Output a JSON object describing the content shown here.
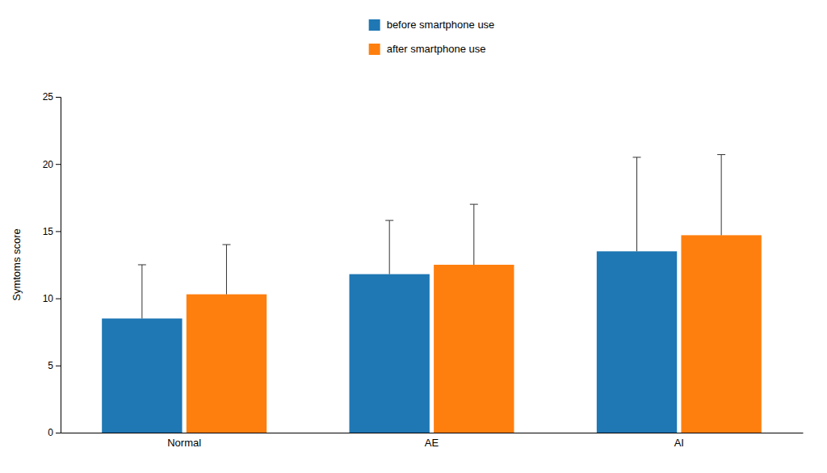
{
  "chart_data": {
    "type": "bar",
    "categories": [
      "Normal",
      "AE",
      "AI"
    ],
    "series": [
      {
        "name": "before smartphone use",
        "values": [
          8.5,
          11.8,
          13.5
        ],
        "errors": [
          4.0,
          4.0,
          7.0
        ]
      },
      {
        "name": "after smartphone use",
        "values": [
          10.3,
          12.5,
          14.7
        ],
        "errors": [
          3.7,
          4.5,
          6.0
        ]
      }
    ],
    "ylabel": "Symtoms score",
    "ylim": [
      0,
      25
    ],
    "yticks": [
      0,
      5,
      10,
      15,
      20,
      25
    ],
    "grid": false,
    "legend": "top"
  }
}
